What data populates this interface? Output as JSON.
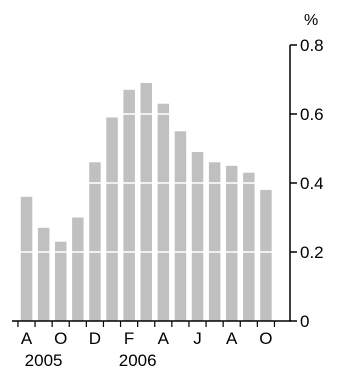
{
  "chart_data": {
    "type": "bar",
    "unit": "%",
    "categories": [
      "Aug 2005",
      "Sep 2005",
      "Oct 2005",
      "Nov 2005",
      "Dec 2005",
      "Jan 2006",
      "Feb 2006",
      "Mar 2006",
      "Apr 2006",
      "May 2006",
      "Jun 2006",
      "Jul 2006",
      "Aug 2006",
      "Sep 2006",
      "Oct 2006"
    ],
    "values": [
      0.36,
      0.27,
      0.23,
      0.3,
      0.46,
      0.59,
      0.67,
      0.69,
      0.63,
      0.55,
      0.49,
      0.46,
      0.45,
      0.43,
      0.38
    ],
    "x_tick_labels": [
      "A",
      "O",
      "D",
      "F",
      "A",
      "J",
      "A",
      "O"
    ],
    "x_tick_indices": [
      0,
      2,
      4,
      6,
      8,
      10,
      12,
      14
    ],
    "year_labels": [
      {
        "label": "2005",
        "index": 1
      },
      {
        "label": "2006",
        "index": 6.5
      }
    ],
    "ylim": [
      0,
      0.8
    ],
    "yticks": [
      0,
      0.2,
      0.4,
      0.6,
      0.8
    ],
    "ytick_labels": [
      "0",
      "0.2",
      "0.4",
      "0.6",
      "0.8"
    ],
    "y_axis_side": "right",
    "grid": "white horizontal lines through bars",
    "colors": {
      "bar": "#c0c0c0",
      "axis": "#000000",
      "gridline": "#ffffff"
    }
  }
}
